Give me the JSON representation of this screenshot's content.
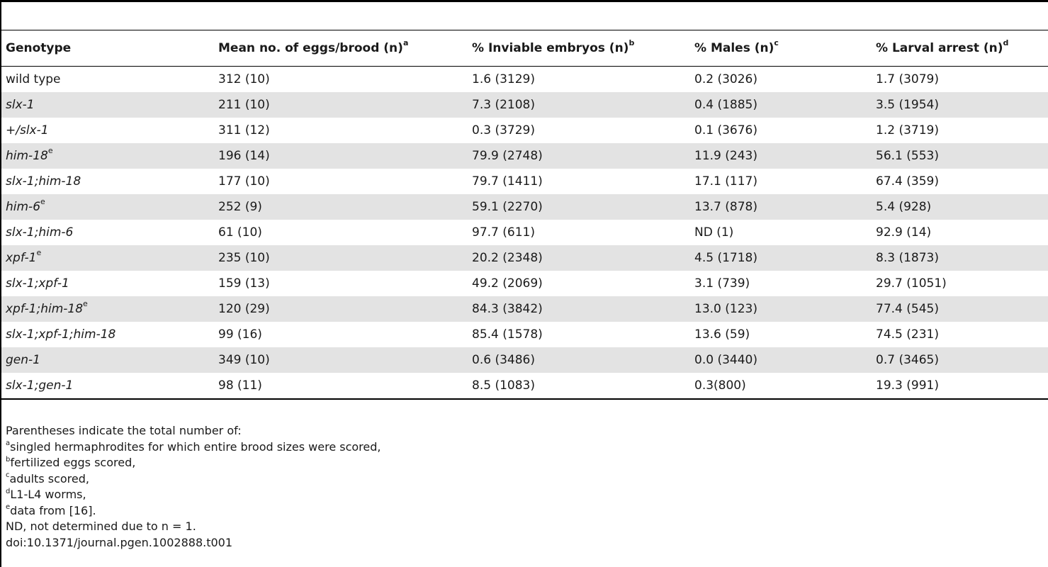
{
  "headers": {
    "genotype": "Genotype",
    "eggs": "Mean no. of eggs/brood (n)",
    "eggs_sup": "a",
    "inviable": "% Inviable embryos (n)",
    "inviable_sup": "b",
    "males": "% Males (n)",
    "males_sup": "c",
    "larval": "% Larval arrest (n)",
    "larval_sup": "d"
  },
  "rows": [
    {
      "genotype": "wild type",
      "sup": "",
      "eggs": "312 (10)",
      "inviable": "1.6 (3129)",
      "males": "0.2 (3026)",
      "larval": "1.7 (3079)"
    },
    {
      "genotype": "slx-1",
      "sup": "",
      "eggs": "211 (10)",
      "inviable": "7.3 (2108)",
      "males": "0.4 (1885)",
      "larval": "3.5 (1954)"
    },
    {
      "genotype": "+/slx-1",
      "sup": "",
      "eggs": "311 (12)",
      "inviable": "0.3 (3729)",
      "males": "0.1 (3676)",
      "larval": "1.2 (3719)"
    },
    {
      "genotype": "him-18",
      "sup": "e",
      "eggs": "196 (14)",
      "inviable": "79.9 (2748)",
      "males": "11.9 (243)",
      "larval": "56.1 (553)"
    },
    {
      "genotype": "slx-1;him-18",
      "sup": "",
      "eggs": "177 (10)",
      "inviable": "79.7 (1411)",
      "males": "17.1 (117)",
      "larval": "67.4 (359)"
    },
    {
      "genotype": "him-6",
      "sup": "e",
      "eggs": "252 (9)",
      "inviable": "59.1 (2270)",
      "males": "13.7 (878)",
      "larval": "5.4 (928)"
    },
    {
      "genotype": "slx-1;him-6",
      "sup": "",
      "eggs": "61 (10)",
      "inviable": "97.7 (611)",
      "males": "ND (1)",
      "larval": "92.9 (14)"
    },
    {
      "genotype": "xpf-1",
      "sup": "e",
      "eggs": "235 (10)",
      "inviable": "20.2 (2348)",
      "males": "4.5 (1718)",
      "larval": "8.3 (1873)"
    },
    {
      "genotype": "slx-1;xpf-1",
      "sup": "",
      "eggs": "159 (13)",
      "inviable": "49.2 (2069)",
      "males": "3.1 (739)",
      "larval": "29.7 (1051)"
    },
    {
      "genotype": "xpf-1;him-18",
      "sup": "e",
      "eggs": "120 (29)",
      "inviable": "84.3 (3842)",
      "males": "13.0 (123)",
      "larval": "77.4 (545)"
    },
    {
      "genotype": "slx-1;xpf-1;him-18",
      "sup": "",
      "eggs": "99 (16)",
      "inviable": "85.4 (1578)",
      "males": "13.6 (59)",
      "larval": "74.5 (231)"
    },
    {
      "genotype": "gen-1",
      "sup": "",
      "eggs": "349 (10)",
      "inviable": "0.6 (3486)",
      "males": "0.0 (3440)",
      "larval": "0.7 (3465)"
    },
    {
      "genotype": "slx-1;gen-1",
      "sup": "",
      "eggs": "98 (11)",
      "inviable": "8.5 (1083)",
      "males": "0.3(800)",
      "larval": "19.3 (991)"
    }
  ],
  "footnotes": {
    "intro": "Parentheses indicate the total number of:",
    "a_sup": "a",
    "a": "singled hermaphrodites for which entire brood sizes were scored,",
    "b_sup": "b",
    "b": "fertilized eggs scored,",
    "c_sup": "c",
    "c": "adults scored,",
    "d_sup": "d",
    "d": "L1-L4 worms,",
    "e_sup": "e",
    "e": "data from [16].",
    "nd": "ND, not determined due to n = 1.",
    "doi": "doi:10.1371/journal.pgen.1002888.t001"
  }
}
